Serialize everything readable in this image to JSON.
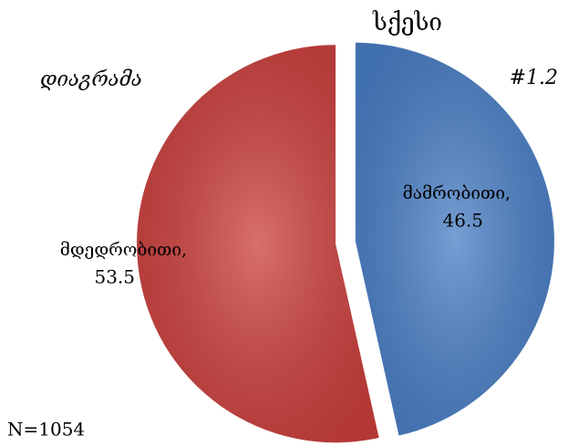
{
  "chart_data": {
    "type": "pie",
    "title": "სქესი",
    "subtitle": "დიაგრამა",
    "annotations": [
      "#1.2",
      "N=1054"
    ],
    "categories": [
      "მამრობითი,",
      "მდედრობითი,"
    ],
    "values": [
      46.5,
      53.5
    ],
    "colors": [
      "#4a7fc6",
      "#cc403d"
    ]
  }
}
